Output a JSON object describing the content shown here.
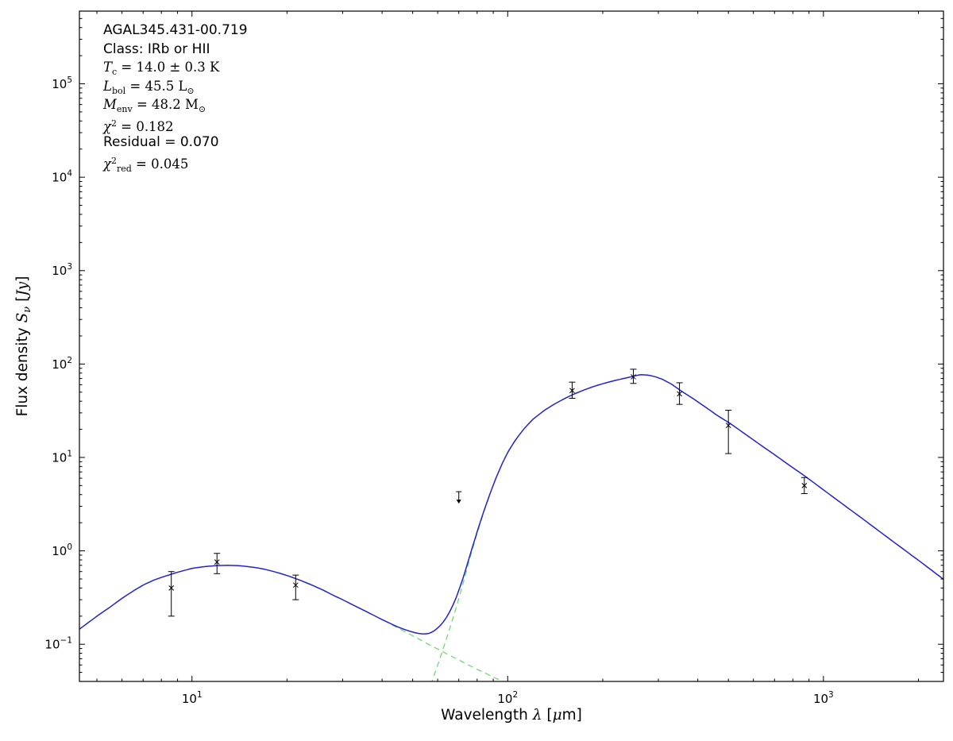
{
  "figure": {
    "background": "#ffffff",
    "axis_color": "#000000"
  },
  "annotations": {
    "lines": [
      {
        "parts": [
          {
            "t": "AGAL345.431-00.719",
            "s": "sans"
          }
        ]
      },
      {
        "parts": [
          {
            "t": "Class: IRb or HII",
            "s": "sans"
          }
        ]
      },
      {
        "parts": [
          {
            "t": "T",
            "s": "it"
          },
          {
            "t": "c",
            "s": "sub"
          },
          {
            "t": " = 14.0 ± 0.3 K",
            "s": "rm"
          }
        ]
      },
      {
        "parts": [
          {
            "t": "L",
            "s": "it"
          },
          {
            "t": "bol",
            "s": "sub"
          },
          {
            "t": " = 45.5 L",
            "s": "rm"
          },
          {
            "t": "⊙",
            "s": "sub"
          }
        ]
      },
      {
        "parts": [
          {
            "t": "M",
            "s": "it"
          },
          {
            "t": "env",
            "s": "sub"
          },
          {
            "t": " = 48.2 M",
            "s": "rm"
          },
          {
            "t": "⊙",
            "s": "sub"
          }
        ]
      },
      {
        "parts": [
          {
            "t": "χ",
            "s": "it"
          },
          {
            "t": "2",
            "s": "sup"
          },
          {
            "t": " = 0.182",
            "s": "rm"
          }
        ]
      },
      {
        "parts": [
          {
            "t": "Residual = 0.070",
            "s": "sans"
          }
        ]
      },
      {
        "parts": [
          {
            "t": "χ",
            "s": "it"
          },
          {
            "t": "2",
            "s": "sup"
          },
          {
            "t": "red",
            "s": "sub"
          },
          {
            "t": " = 0.045",
            "s": "rm"
          }
        ]
      }
    ]
  },
  "chart_data": {
    "type": "line",
    "xscale": "log",
    "yscale": "log",
    "xlabel": "Wavelength λ [μm]",
    "ylabel": "Flux density S_ν [Jy]",
    "xlabel_parts": [
      {
        "t": "Wavelength ",
        "s": "sans"
      },
      {
        "t": "λ",
        "s": "it"
      },
      {
        "t": " [",
        "s": "sans"
      },
      {
        "t": "μ",
        "s": "it"
      },
      {
        "t": "m]",
        "s": "sans"
      }
    ],
    "ylabel_parts": [
      {
        "t": "Flux density ",
        "s": "sans"
      },
      {
        "t": "S",
        "s": "it"
      },
      {
        "t": "ν",
        "s": "sub"
      },
      {
        "t": " [",
        "s": "sans"
      },
      {
        "t": "Jy",
        "s": "it"
      },
      {
        "t": "]",
        "s": "sans"
      }
    ],
    "xlim": [
      4.4,
      2400
    ],
    "ylim": [
      0.04,
      600000
    ],
    "x_ticks": [
      10,
      100,
      1000
    ],
    "y_ticks": [
      0.1,
      1,
      10,
      100,
      1000,
      10000,
      100000
    ],
    "grid": false,
    "legend": "none",
    "series": [
      {
        "name": "total model (warm + cold greybody fit)",
        "style": "solid",
        "color": "#2222cc",
        "derived": "sum of warm and cold components"
      },
      {
        "name": "warm component",
        "style": "dashed",
        "color": "#70d870",
        "points": [
          [
            4.4,
            0.145
          ],
          [
            5,
            0.2
          ],
          [
            5.5,
            0.25
          ],
          [
            6,
            0.31
          ],
          [
            6.5,
            0.37
          ],
          [
            7,
            0.43
          ],
          [
            7.5,
            0.48
          ],
          [
            8,
            0.52
          ],
          [
            8.5,
            0.555
          ],
          [
            9,
            0.59
          ],
          [
            9.5,
            0.62
          ],
          [
            10,
            0.65
          ],
          [
            11,
            0.68
          ],
          [
            12,
            0.695
          ],
          [
            13,
            0.7
          ],
          [
            14,
            0.695
          ],
          [
            15,
            0.68
          ],
          [
            16,
            0.66
          ],
          [
            17,
            0.635
          ],
          [
            18,
            0.605
          ],
          [
            19,
            0.575
          ],
          [
            20,
            0.545
          ],
          [
            22,
            0.485
          ],
          [
            24,
            0.43
          ],
          [
            26,
            0.38
          ],
          [
            28,
            0.335
          ],
          [
            30,
            0.3
          ],
          [
            33,
            0.255
          ],
          [
            36,
            0.22
          ],
          [
            40,
            0.183
          ],
          [
            44,
            0.155
          ],
          [
            48,
            0.133
          ],
          [
            52,
            0.115
          ],
          [
            56,
            0.1
          ],
          [
            60,
            0.089
          ],
          [
            65,
            0.077
          ],
          [
            70,
            0.068
          ],
          [
            75,
            0.06
          ],
          [
            80,
            0.054
          ],
          [
            85,
            0.049
          ],
          [
            90,
            0.0445
          ],
          [
            95,
            0.041
          ],
          [
            100,
            0.0375
          ],
          [
            106,
            0.034
          ],
          [
            112,
            0.031
          ],
          [
            118,
            0.0285
          ],
          [
            125,
            0.026
          ]
        ]
      },
      {
        "name": "cold component",
        "style": "dashed",
        "color": "#70d870",
        "points": [
          [
            44,
            0.003
          ],
          [
            48,
            0.008
          ],
          [
            52,
            0.016
          ],
          [
            56,
            0.03
          ],
          [
            60,
            0.06
          ],
          [
            64,
            0.115
          ],
          [
            68,
            0.22
          ],
          [
            72,
            0.43
          ],
          [
            76,
            0.85
          ],
          [
            80,
            1.55
          ],
          [
            84,
            2.6
          ],
          [
            88,
            4.1
          ],
          [
            92,
            6.1
          ],
          [
            96,
            8.5
          ],
          [
            100,
            11.3
          ],
          [
            106,
            15.5
          ],
          [
            112,
            19.8
          ],
          [
            120,
            25.5
          ],
          [
            130,
            31.5
          ],
          [
            140,
            37
          ],
          [
            152,
            43
          ],
          [
            163,
            48
          ],
          [
            175,
            53
          ],
          [
            190,
            58.5
          ],
          [
            205,
            63
          ],
          [
            220,
            67
          ],
          [
            235,
            70.5
          ],
          [
            250,
            74
          ],
          [
            258,
            75.8
          ],
          [
            265,
            77
          ],
          [
            280,
            75.9
          ],
          [
            295,
            72.8
          ],
          [
            310,
            68.3
          ],
          [
            330,
            61
          ],
          [
            350,
            53
          ],
          [
            380,
            44.3
          ],
          [
            420,
            35.2
          ],
          [
            460,
            28.3
          ],
          [
            500,
            23.8
          ],
          [
            560,
            18.2
          ],
          [
            630,
            13.7
          ],
          [
            700,
            10.7
          ],
          [
            790,
            8.0
          ],
          [
            880,
            6.2
          ],
          [
            1000,
            4.5
          ],
          [
            1150,
            3.17
          ],
          [
            1320,
            2.25
          ],
          [
            1550,
            1.5
          ],
          [
            1800,
            1.03
          ],
          [
            2100,
            0.7
          ],
          [
            2450,
            0.47
          ]
        ]
      }
    ],
    "data_points": [
      {
        "x": 8.6,
        "y": 0.4,
        "ylo": 0.2,
        "yhi": 0.6
      },
      {
        "x": 12,
        "y": 0.76,
        "ylo": 0.57,
        "yhi": 0.94
      },
      {
        "x": 21.3,
        "y": 0.43,
        "ylo": 0.3,
        "yhi": 0.55
      },
      {
        "x": 160,
        "y": 52,
        "ylo": 43,
        "yhi": 64
      },
      {
        "x": 250,
        "y": 73,
        "ylo": 62,
        "yhi": 88
      },
      {
        "x": 350,
        "y": 48,
        "ylo": 37,
        "yhi": 63
      },
      {
        "x": 500,
        "y": 22,
        "ylo": 11,
        "yhi": 32
      },
      {
        "x": 870,
        "y": 5.0,
        "ylo": 4.1,
        "yhi": 6.1
      }
    ],
    "upper_limits": [
      {
        "x": 70,
        "y": 4.3
      }
    ]
  }
}
